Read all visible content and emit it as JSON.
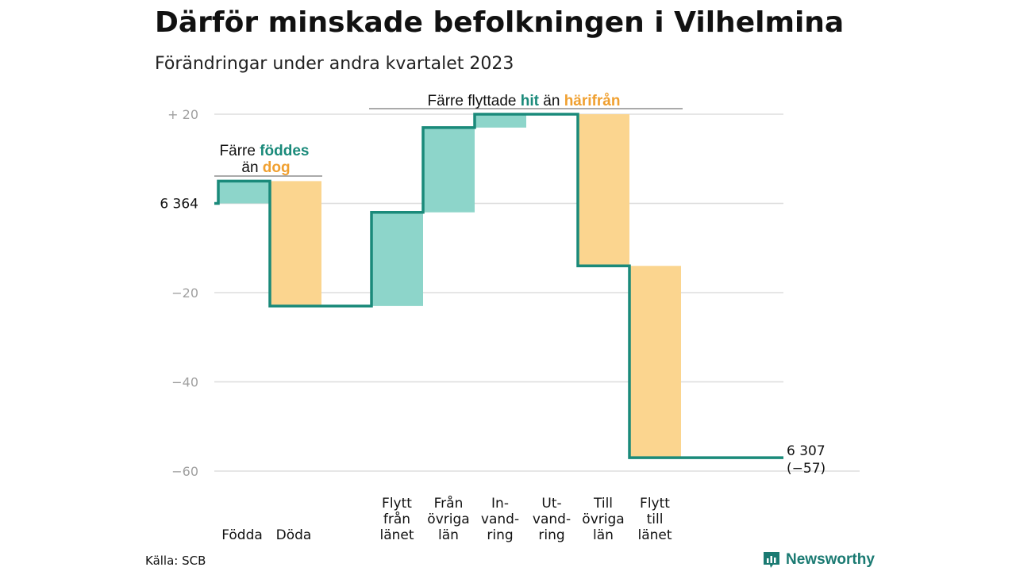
{
  "title": "Därför minskade befolkningen i Vilhelmina",
  "subtitle": "Förändringar under andra kvartalet 2023",
  "source": "Källa: SCB",
  "brand": "Newsworthy",
  "colors": {
    "increase": "#8dd5ca",
    "decrease": "#fbd58f",
    "line": "#1a8a7a",
    "accent_in": "#1a8a7a",
    "accent_out": "#f0a030"
  },
  "annotations": {
    "births": {
      "prefix": "Färre",
      "hl1": "föddes",
      "mid": "än",
      "hl2": "dog"
    },
    "migration": {
      "prefix": "Färre flyttade",
      "hl1": "hit",
      "mid": "än",
      "hl2": "härifrån"
    }
  },
  "chart_data": {
    "type": "bar",
    "start": {
      "label": "6  364",
      "value": 6364
    },
    "end": {
      "label": "6 307",
      "change_label": "(−57)",
      "value": 6307,
      "change": -57
    },
    "steps": [
      {
        "lines": [
          "Födda"
        ],
        "value": 5
      },
      {
        "lines": [
          "Döda"
        ],
        "value": -28
      },
      {
        "lines": [
          "Flytt",
          "från",
          "länet"
        ],
        "value": 21
      },
      {
        "lines": [
          "Från",
          "övriga",
          "län"
        ],
        "value": 19
      },
      {
        "lines": [
          "In-",
          "vand-",
          "ring"
        ],
        "value": 3
      },
      {
        "lines": [
          "Ut-",
          "vand-",
          "ring"
        ],
        "value": 0
      },
      {
        "lines": [
          "Till",
          "övriga",
          "län"
        ],
        "value": -34
      },
      {
        "lines": [
          "Flytt",
          "till",
          "länet"
        ],
        "value": -43
      }
    ],
    "ylim": [
      -60,
      20
    ],
    "y_ticks": [
      {
        "value": 20,
        "label": "+  20"
      },
      {
        "value": 0,
        "label": "6  364"
      },
      {
        "value": -20,
        "label": "−20"
      },
      {
        "value": -40,
        "label": "−40"
      },
      {
        "value": -60,
        "label": "−60"
      }
    ],
    "grid": true
  }
}
